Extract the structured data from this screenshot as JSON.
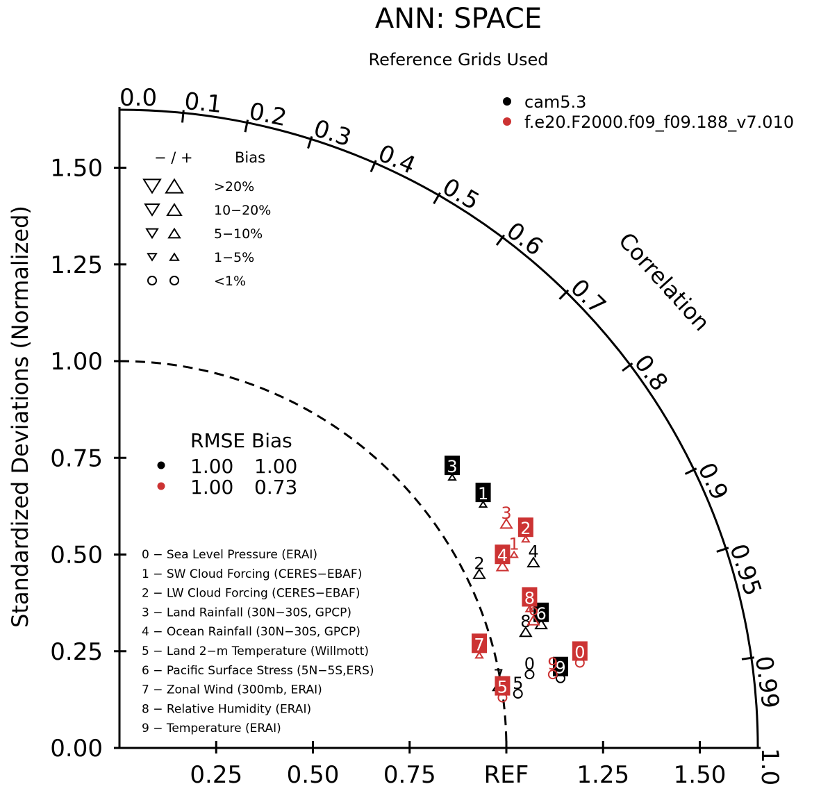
{
  "chart_data": {
    "type": "taylor",
    "title": "ANN: SPACE",
    "subtitle": "Reference Grids Used",
    "ylabel": "Standardized Deviations (Normalized)",
    "arc_label": "Correlation",
    "ref_label": "REF",
    "std_ticks": [
      0.0,
      0.25,
      0.5,
      0.75,
      1.0,
      1.25,
      1.5
    ],
    "std_tick_labels": [
      "0.00",
      "0.25",
      "0.50",
      "0.75",
      "1.00",
      "1.25",
      "1.50"
    ],
    "x_tick_labels": [
      "0.25",
      "0.50",
      "0.75",
      "REF",
      "1.25",
      "1.50"
    ],
    "std_max": 1.65,
    "corr_ticks": [
      "0.0",
      "0.1",
      "0.2",
      "0.3",
      "0.4",
      "0.5",
      "0.6",
      "0.7",
      "0.8",
      "0.9",
      "0.95",
      "0.99",
      "1.0"
    ],
    "series": [
      {
        "name": "cam5.3",
        "color": "#000000",
        "rmse": "1.00",
        "bias": "1.00"
      },
      {
        "name": "f.e20.F2000.f09_f09.188_v7.010",
        "color": "#cc3333",
        "rmse": "1.00",
        "bias": "0.73"
      }
    ],
    "points": [
      {
        "series": 0,
        "label": "0",
        "x": 1.06,
        "y": 0.19,
        "marker": "circle",
        "boxed": false
      },
      {
        "series": 0,
        "label": "1",
        "x": 0.94,
        "y": 0.63,
        "marker": "tri-up-sm",
        "boxed": true
      },
      {
        "series": 0,
        "label": "2",
        "x": 0.93,
        "y": 0.45,
        "marker": "tri-up-lg",
        "boxed": false
      },
      {
        "series": 0,
        "label": "3",
        "x": 0.86,
        "y": 0.7,
        "marker": "tri-up-sm",
        "boxed": true
      },
      {
        "series": 0,
        "label": "4",
        "x": 1.07,
        "y": 0.48,
        "marker": "tri-up-lg",
        "boxed": false
      },
      {
        "series": 0,
        "label": "5",
        "x": 1.03,
        "y": 0.14,
        "marker": "circle",
        "boxed": false
      },
      {
        "series": 0,
        "label": "6",
        "x": 1.09,
        "y": 0.32,
        "marker": "tri-up-lg",
        "boxed": true
      },
      {
        "series": 0,
        "label": "7",
        "x": 0.98,
        "y": 0.16,
        "marker": "tri-up-lg",
        "boxed": false
      },
      {
        "series": 0,
        "label": "8",
        "x": 1.05,
        "y": 0.3,
        "marker": "tri-up-lg",
        "boxed": false
      },
      {
        "series": 0,
        "label": "9",
        "x": 1.14,
        "y": 0.18,
        "marker": "circle",
        "boxed": true
      },
      {
        "series": 1,
        "label": "0",
        "x": 1.19,
        "y": 0.22,
        "marker": "circle",
        "boxed": true
      },
      {
        "series": 1,
        "label": "1",
        "x": 1.02,
        "y": 0.5,
        "marker": "tri-up-sm",
        "boxed": false
      },
      {
        "series": 1,
        "label": "2",
        "x": 1.05,
        "y": 0.54,
        "marker": "tri-up-sm",
        "boxed": true
      },
      {
        "series": 1,
        "label": "3",
        "x": 1.0,
        "y": 0.58,
        "marker": "tri-up-lg",
        "boxed": false
      },
      {
        "series": 1,
        "label": "4",
        "x": 0.99,
        "y": 0.47,
        "marker": "tri-up-lg",
        "boxed": true
      },
      {
        "series": 1,
        "label": "5",
        "x": 0.99,
        "y": 0.13,
        "marker": "circle",
        "boxed": true
      },
      {
        "series": 1,
        "label": "6",
        "x": 1.07,
        "y": 0.33,
        "marker": "tri-up-lg",
        "boxed": false
      },
      {
        "series": 1,
        "label": "7",
        "x": 0.93,
        "y": 0.24,
        "marker": "tri-up-sm",
        "boxed": true
      },
      {
        "series": 1,
        "label": "8",
        "x": 1.06,
        "y": 0.36,
        "marker": "tri-up-sm",
        "boxed": true
      },
      {
        "series": 1,
        "label": "9",
        "x": 1.12,
        "y": 0.19,
        "marker": "circle",
        "boxed": false
      }
    ],
    "bias_legend": {
      "header": "− / +",
      "header_right": "Bias",
      "rows": [
        ">20%",
        "10−20%",
        "5−10%",
        "1−5%",
        "<1%"
      ]
    },
    "stats_header": "RMSE Bias",
    "case_list": [
      "0 − Sea Level Pressure (ERAI)",
      "1 − SW Cloud Forcing (CERES−EBAF)",
      "2 − LW Cloud Forcing (CERES−EBAF)",
      "3 − Land Rainfall (30N−30S, GPCP)",
      "4 − Ocean Rainfall (30N−30S, GPCP)",
      "5 − Land 2−m Temperature (Willmott)",
      "6 − Pacific Surface Stress (5N−5S,ERS)",
      "7 − Zonal Wind (300mb, ERAI)",
      "8 − Relative Humidity (ERAI)",
      "9 − Temperature (ERAI)"
    ]
  }
}
